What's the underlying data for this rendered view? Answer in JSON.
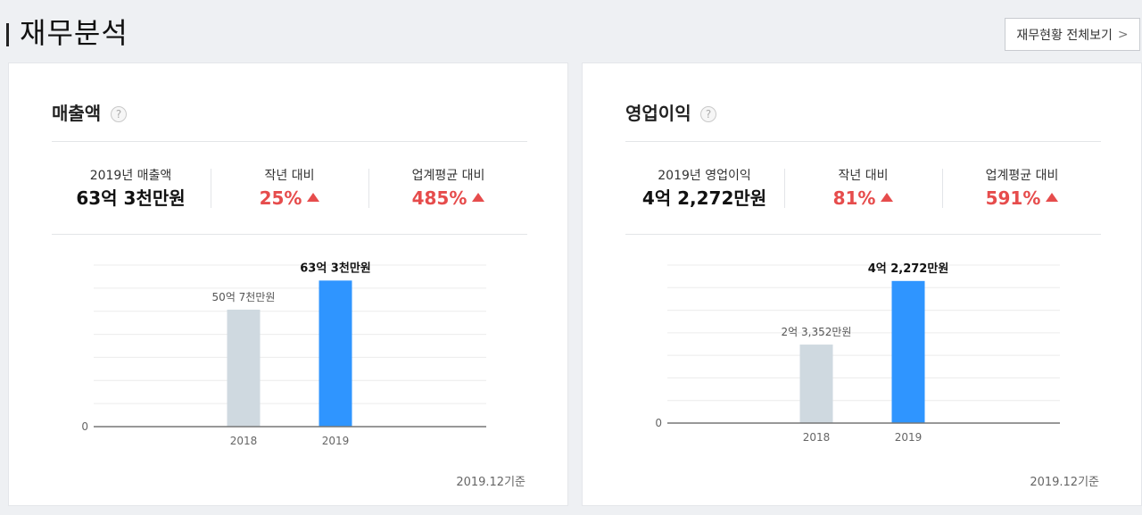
{
  "header": {
    "title": "재무분석",
    "view_all_label": "재무현황 전체보기",
    "view_all_chevron": ">"
  },
  "cards": [
    {
      "title": "매출액",
      "help": "?",
      "stats": [
        {
          "label": "2019년 매출액",
          "value": "63억 3천만원"
        },
        {
          "label": "작년 대비",
          "value": "25%"
        },
        {
          "label": "업계평균 대비",
          "value": "485%"
        }
      ],
      "footnote": "2019.12기준"
    },
    {
      "title": "영업이익",
      "help": "?",
      "stats": [
        {
          "label": "2019년 영업이익",
          "value": "4억 2,272만원"
        },
        {
          "label": "작년 대비",
          "value": "81%"
        },
        {
          "label": "업계평균 대비",
          "value": "591%"
        }
      ],
      "footnote": "2019.12기준"
    }
  ],
  "colors": {
    "accent_bar": "#2f95ff",
    "previous_bar": "#cfd9e0",
    "increase": "#e64c4c"
  },
  "chart_data": [
    {
      "type": "bar",
      "title": "매출액",
      "categories": [
        "2018",
        "2019"
      ],
      "values": [
        5070000000,
        6330000000
      ],
      "value_labels": [
        "50억 7천만원",
        "63억 3천만원"
      ],
      "y_tick_label": "0",
      "ylim": [
        0,
        7000000000
      ],
      "grid": true
    },
    {
      "type": "bar",
      "title": "영업이익",
      "categories": [
        "2018",
        "2019"
      ],
      "values": [
        233520000,
        422720000
      ],
      "value_labels": [
        "2억 3,352만원",
        "4억 2,272만원"
      ],
      "y_tick_label": "0",
      "ylim": [
        0,
        470000000
      ],
      "grid": true
    }
  ]
}
